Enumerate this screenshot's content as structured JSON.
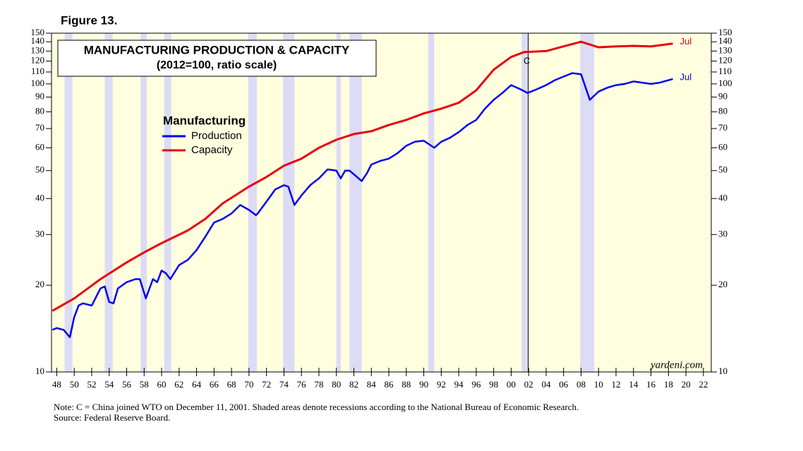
{
  "chart_data": {
    "type": "line",
    "figure_label": "Figure 13.",
    "title": "MANUFACTURING PRODUCTION & CAPACITY",
    "subtitle": "(2012=100, ratio scale)",
    "legend_title": "Manufacturing",
    "log_scale": true,
    "xlim": [
      1947.4,
      2022.9
    ],
    "ylim": [
      10,
      150
    ],
    "yticks": [
      10,
      20,
      30,
      40,
      50,
      60,
      70,
      80,
      90,
      100,
      110,
      120,
      130,
      140,
      150
    ],
    "xticks": [
      {
        "value": 1948,
        "label": "48"
      },
      {
        "value": 1950,
        "label": "50"
      },
      {
        "value": 1952,
        "label": "52"
      },
      {
        "value": 1954,
        "label": "54"
      },
      {
        "value": 1956,
        "label": "56"
      },
      {
        "value": 1958,
        "label": "58"
      },
      {
        "value": 1960,
        "label": "60"
      },
      {
        "value": 1962,
        "label": "62"
      },
      {
        "value": 1964,
        "label": "64"
      },
      {
        "value": 1966,
        "label": "66"
      },
      {
        "value": 1968,
        "label": "68"
      },
      {
        "value": 1970,
        "label": "70"
      },
      {
        "value": 1972,
        "label": "72"
      },
      {
        "value": 1974,
        "label": "74"
      },
      {
        "value": 1976,
        "label": "76"
      },
      {
        "value": 1978,
        "label": "78"
      },
      {
        "value": 1980,
        "label": "80"
      },
      {
        "value": 1982,
        "label": "82"
      },
      {
        "value": 1984,
        "label": "84"
      },
      {
        "value": 1986,
        "label": "86"
      },
      {
        "value": 1988,
        "label": "88"
      },
      {
        "value": 1990,
        "label": "90"
      },
      {
        "value": 1992,
        "label": "92"
      },
      {
        "value": 1994,
        "label": "94"
      },
      {
        "value": 1996,
        "label": "96"
      },
      {
        "value": 1998,
        "label": "98"
      },
      {
        "value": 2000,
        "label": "00"
      },
      {
        "value": 2002,
        "label": "02"
      },
      {
        "value": 2004,
        "label": "04"
      },
      {
        "value": 2006,
        "label": "06"
      },
      {
        "value": 2008,
        "label": "08"
      },
      {
        "value": 2010,
        "label": "10"
      },
      {
        "value": 2012,
        "label": "12"
      },
      {
        "value": 2014,
        "label": "14"
      },
      {
        "value": 2016,
        "label": "16"
      },
      {
        "value": 2018,
        "label": "18"
      },
      {
        "value": 2020,
        "label": "20"
      },
      {
        "value": 2022,
        "label": "22"
      }
    ],
    "background_color": "#ffffe0",
    "recession_color": "#dcdcf6",
    "recessions": [
      [
        1948.9,
        1949.8
      ],
      [
        1953.5,
        1954.4
      ],
      [
        1957.6,
        1958.3
      ],
      [
        1960.3,
        1961.1
      ],
      [
        1969.9,
        1970.9
      ],
      [
        1973.9,
        1975.2
      ],
      [
        1980.0,
        1980.5
      ],
      [
        1981.5,
        1982.9
      ],
      [
        1990.5,
        1991.2
      ],
      [
        2001.2,
        2001.9
      ],
      [
        2007.9,
        2009.5
      ]
    ],
    "event_line": {
      "x": 2001.95,
      "label": "C"
    },
    "series": [
      {
        "name": "Production",
        "color": "#0000ee",
        "end_label": "Jul",
        "x": [
          1947.5,
          1948,
          1948.8,
          1949.5,
          1950,
          1950.5,
          1951,
          1952,
          1953,
          1953.5,
          1954,
          1954.5,
          1955,
          1956,
          1957,
          1957.5,
          1958.2,
          1959,
          1959.5,
          1960,
          1960.5,
          1961,
          1962,
          1963,
          1964,
          1965,
          1966,
          1967,
          1968,
          1969,
          1970,
          1970.8,
          1971,
          1972,
          1973,
          1974,
          1974.5,
          1975.2,
          1976,
          1977,
          1978,
          1979,
          1980,
          1980.5,
          1981,
          1981.5,
          1982.9,
          1983.5,
          1984,
          1985,
          1986,
          1987,
          1988,
          1989,
          1990,
          1991.2,
          1992,
          1993,
          1994,
          1995,
          1996,
          1997,
          1998,
          1999,
          2000,
          2001,
          2001.9,
          2003,
          2004,
          2005,
          2006,
          2007,
          2008,
          2009,
          2010,
          2011,
          2012,
          2013,
          2014,
          2015,
          2016,
          2017,
          2018.5
        ],
        "values": [
          14,
          14.2,
          14,
          13.2,
          15.5,
          17,
          17.3,
          17,
          19.5,
          19.8,
          17.5,
          17.3,
          19.5,
          20.5,
          21,
          21,
          18,
          21,
          20.5,
          22.5,
          22,
          21,
          23.5,
          24.5,
          26.5,
          29.5,
          33,
          34,
          35.5,
          38,
          36.5,
          35,
          35.5,
          39,
          43,
          44.5,
          44,
          38,
          41,
          44.5,
          47,
          50.5,
          50,
          47,
          50,
          50,
          46,
          49,
          52.5,
          54,
          55,
          57.5,
          61,
          63,
          63.5,
          60,
          63,
          65,
          68,
          72,
          75,
          82,
          88,
          93,
          99,
          96,
          93,
          96,
          99,
          103,
          106,
          109,
          108,
          88,
          94,
          97,
          99,
          100,
          102,
          101,
          100,
          101,
          104
        ]
      },
      {
        "name": "Capacity",
        "color": "#e8000b",
        "end_label": "Jul",
        "x": [
          1947.5,
          1950,
          1953,
          1956,
          1958,
          1960,
          1963,
          1965,
          1967,
          1970,
          1972,
          1974,
          1976,
          1978,
          1980,
          1982,
          1984,
          1986,
          1988,
          1990,
          1992,
          1994,
          1996,
          1998,
          2000,
          2001.5,
          2004,
          2006,
          2008,
          2010,
          2012,
          2014,
          2016,
          2018.5
        ],
        "values": [
          16.3,
          18,
          21,
          24,
          26,
          28,
          31,
          34,
          38.5,
          44,
          47.5,
          52,
          55,
          60,
          64,
          67,
          68.5,
          72,
          75,
          79,
          82,
          86,
          95,
          112,
          124,
          129,
          130,
          135,
          140,
          134,
          135,
          135.5,
          135,
          138
        ]
      }
    ],
    "watermark": "yardeni.com",
    "note": "Note: C = China joined WTO on December 11, 2001. Shaded areas denote recessions according to the National Bureau of Economic Research.",
    "source": "Source: Federal Reserve Board."
  }
}
